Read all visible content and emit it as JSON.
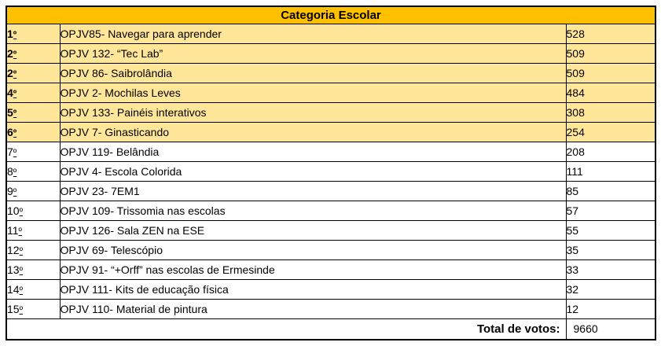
{
  "table": {
    "title": "Categoria Escolar",
    "ordinal_suffix": "º",
    "colors": {
      "header_bg": "#FFC000",
      "highlight_bg": "#FFE699",
      "row_bg": "#FFFFFF",
      "border": "#000000",
      "text": "#000000"
    },
    "rows": [
      {
        "rank": "1",
        "project": "OPJV85- Navegar para aprender",
        "votes": "528",
        "highlighted": true
      },
      {
        "rank": "2",
        "project": "OPJV 132- “Tec Lab”",
        "votes": "509",
        "highlighted": true
      },
      {
        "rank": "2",
        "project": "OPJV 86- Saibrolândia",
        "votes": "509",
        "highlighted": true
      },
      {
        "rank": "4",
        "project": "OPJV 2- Mochilas Leves",
        "votes": "484",
        "highlighted": true
      },
      {
        "rank": "5",
        "project": "OPJV 133- Painéis interativos",
        "votes": "308",
        "highlighted": true
      },
      {
        "rank": "6",
        "project": "OPJV 7- Ginasticando",
        "votes": "254",
        "highlighted": true
      },
      {
        "rank": "7",
        "project": "OPJV 119- Belândia",
        "votes": "208",
        "highlighted": false
      },
      {
        "rank": "8",
        "project": "OPJV 4- Escola Colorida",
        "votes": "111",
        "highlighted": false
      },
      {
        "rank": "9",
        "project": "OPJV 23- 7EM1",
        "votes": "85",
        "highlighted": false
      },
      {
        "rank": "10",
        "project": "OPJV 109- Trissomia nas escolas",
        "votes": "57",
        "highlighted": false
      },
      {
        "rank": "11",
        "project": "OPJV 126- Sala ZEN na ESE",
        "votes": "55",
        "highlighted": false
      },
      {
        "rank": "12",
        "project": "OPJV 69- Telescópio",
        "votes": "35",
        "highlighted": false
      },
      {
        "rank": "13",
        "project": "OPJV 91- “+Orff” nas escolas de Ermesinde",
        "votes": "33",
        "highlighted": false
      },
      {
        "rank": "14",
        "project": "OPJV 111- Kits de educação física",
        "votes": "32",
        "highlighted": false
      },
      {
        "rank": "15",
        "project": "OPJV 110- Material de pintura",
        "votes": "12",
        "highlighted": false
      }
    ],
    "footer": {
      "label": "Total de votos:",
      "value": "9660"
    }
  }
}
